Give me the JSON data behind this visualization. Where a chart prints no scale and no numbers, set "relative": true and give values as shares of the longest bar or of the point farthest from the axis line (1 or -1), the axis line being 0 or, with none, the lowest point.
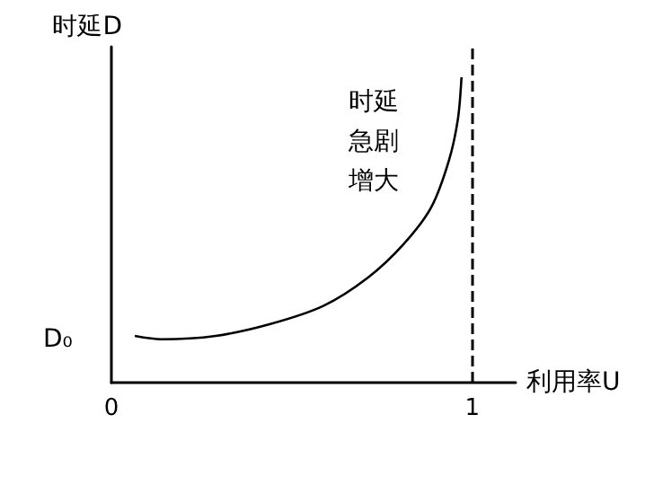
{
  "chart_data": {
    "type": "line",
    "relative": true,
    "xlabel": "利用率U",
    "ylabel": "时延D",
    "x": [
      0.065,
      0.139,
      0.289,
      0.438,
      0.587,
      0.711,
      0.81,
      0.886,
      0.935,
      0.96,
      0.97
    ],
    "series": [
      {
        "color": "#000000",
        "values": [
          0.153,
          0.142,
          0.153,
          0.191,
          0.251,
          0.344,
          0.454,
          0.574,
          0.727,
          0.863,
          1
        ]
      }
    ],
    "xlim": [
      0,
      1.12
    ],
    "xticks": [
      0,
      1
    ],
    "ref_lines": [
      {
        "axis": "x",
        "value": 1,
        "color": "#000000",
        "line_style": "dashed"
      }
    ],
    "annotations": [
      "D₀",
      "时延急剧增大"
    ],
    "marker": "none",
    "grid": false
  }
}
